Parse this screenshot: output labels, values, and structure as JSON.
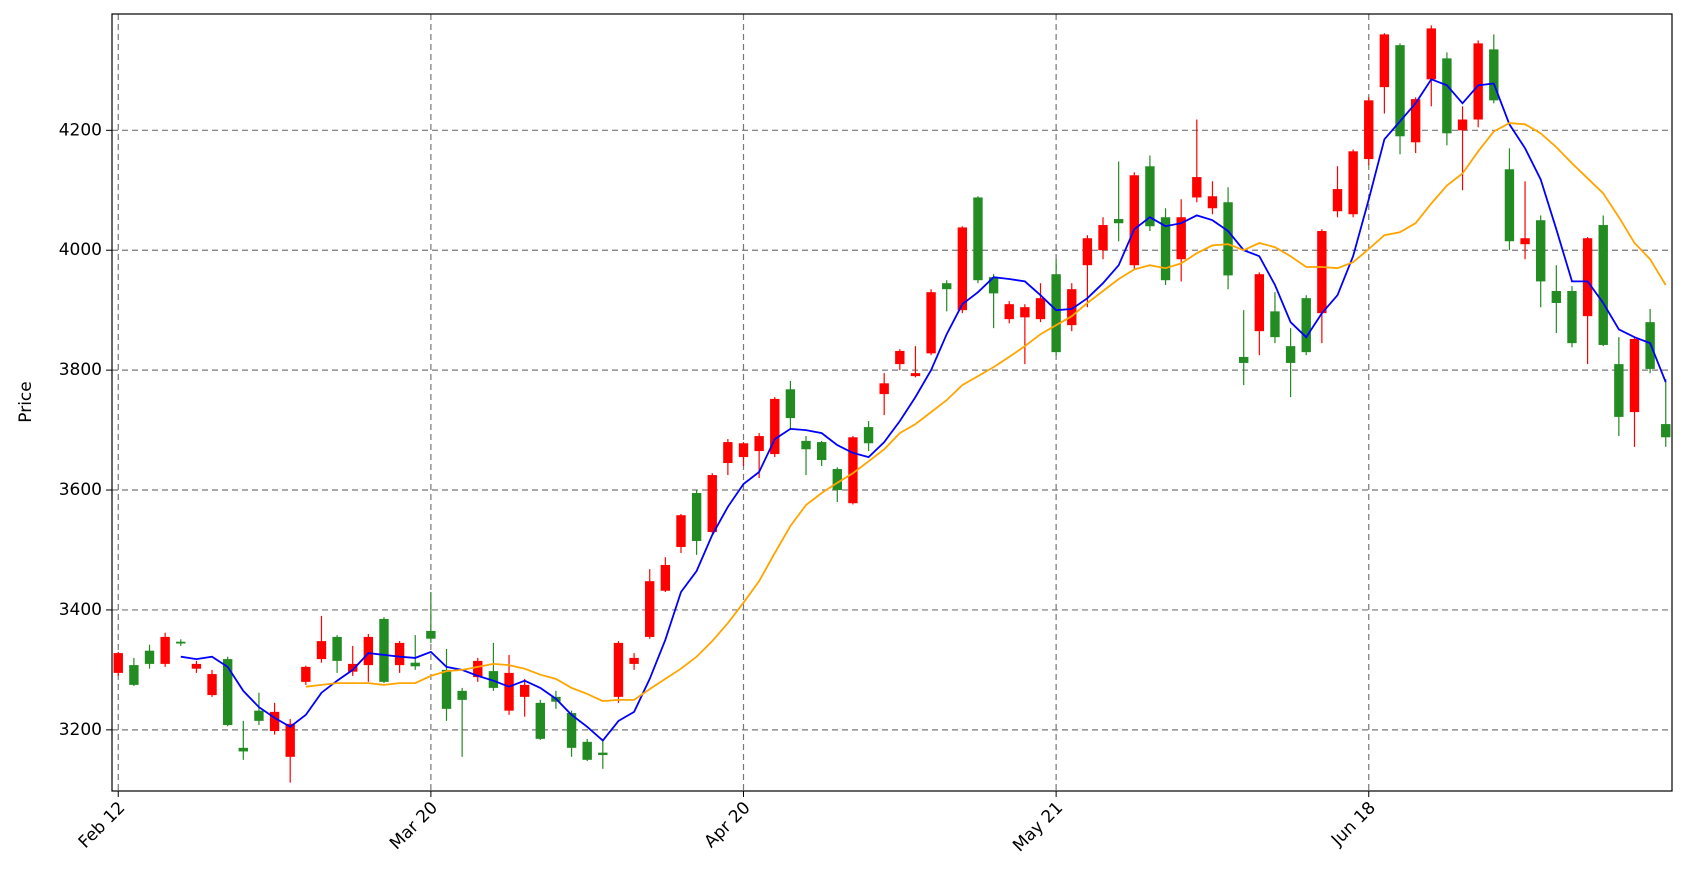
{
  "chart_data": {
    "type": "candlestick",
    "ylabel": "Price",
    "categories": [
      "Feb 12",
      null,
      null,
      null,
      null,
      null,
      null,
      null,
      null,
      null,
      null,
      null,
      null,
      null,
      null,
      null,
      null,
      null,
      null,
      null,
      "Mar 20",
      null,
      null,
      null,
      null,
      null,
      null,
      null,
      null,
      null,
      null,
      null,
      null,
      null,
      null,
      null,
      null,
      null,
      null,
      null,
      "Apr 20",
      null,
      null,
      null,
      null,
      null,
      null,
      null,
      null,
      null,
      null,
      null,
      null,
      null,
      null,
      null,
      null,
      null,
      null,
      null,
      "May 21",
      null,
      null,
      null,
      null,
      null,
      null,
      null,
      null,
      null,
      null,
      null,
      null,
      null,
      null,
      null,
      null,
      null,
      null,
      null,
      "Jun 18",
      null,
      null,
      null,
      null,
      null,
      null,
      null,
      null,
      null,
      null,
      null,
      null,
      null,
      null,
      null,
      null,
      null,
      null,
      null
    ],
    "open": [
      3295,
      3308,
      3332,
      3310,
      3347,
      3302,
      3258,
      3318,
      3170,
      3232,
      3198,
      3155,
      3280,
      3318,
      3355,
      3297,
      3308,
      3385,
      3308,
      3312,
      3365,
      3300,
      3265,
      3288,
      3298,
      3232,
      3255,
      3245,
      3255,
      3228,
      3180,
      3162,
      3255,
      3310,
      3355,
      3432,
      3505,
      3595,
      3530,
      3645,
      3655,
      3665,
      3660,
      3768,
      3682,
      3680,
      3635,
      3578,
      3705,
      3760,
      3810,
      3790,
      3828,
      3945,
      3900,
      4088,
      3955,
      3885,
      3888,
      3885,
      3960,
      3875,
      3975,
      4000,
      4052,
      3975,
      4140,
      4055,
      3985,
      4088,
      4070,
      4080,
      3822,
      3865,
      3898,
      3840,
      3920,
      3895,
      4065,
      4060,
      4152,
      4272,
      4342,
      4180,
      4285,
      4320,
      4200,
      4218,
      4335,
      4135,
      4010,
      4050,
      3932,
      3932,
      3890,
      4042,
      3810,
      3730,
      3880,
      3710
    ],
    "high": [
      3330,
      3320,
      3342,
      3362,
      3351,
      3315,
      3300,
      3322,
      3215,
      3262,
      3245,
      3218,
      3307,
      3390,
      3358,
      3340,
      3360,
      3388,
      3348,
      3358,
      3430,
      3335,
      3270,
      3320,
      3345,
      3325,
      3285,
      3250,
      3265,
      3232,
      3185,
      3185,
      3348,
      3328,
      3468,
      3488,
      3560,
      3600,
      3628,
      3685,
      3680,
      3695,
      3755,
      3782,
      3690,
      3682,
      3638,
      3690,
      3715,
      3795,
      3835,
      3840,
      3935,
      3950,
      4040,
      4090,
      3960,
      3915,
      3910,
      3945,
      3985,
      3945,
      4025,
      4055,
      4148,
      4130,
      4158,
      4070,
      4085,
      4218,
      4115,
      4105,
      3900,
      3963,
      3930,
      3870,
      3925,
      4035,
      4140,
      4168,
      4255,
      4362,
      4345,
      4255,
      4375,
      4330,
      4240,
      4350,
      4360,
      4170,
      4115,
      4058,
      3975,
      3940,
      4022,
      4058,
      3855,
      3855,
      3902,
      3785
    ],
    "low": [
      3290,
      3273,
      3302,
      3305,
      3340,
      3295,
      3255,
      3206,
      3150,
      3208,
      3192,
      3112,
      3275,
      3312,
      3295,
      3290,
      3280,
      3278,
      3295,
      3300,
      3345,
      3215,
      3155,
      3280,
      3265,
      3225,
      3222,
      3183,
      3235,
      3155,
      3148,
      3135,
      3245,
      3300,
      3352,
      3430,
      3495,
      3492,
      3528,
      3625,
      3640,
      3620,
      3655,
      3700,
      3625,
      3640,
      3580,
      3576,
      3665,
      3725,
      3800,
      3788,
      3825,
      3898,
      3895,
      3945,
      3870,
      3878,
      3810,
      3880,
      3825,
      3865,
      3905,
      3985,
      4015,
      3968,
      4032,
      3942,
      3948,
      4080,
      4060,
      3935,
      3775,
      3825,
      3845,
      3755,
      3825,
      3845,
      4055,
      4055,
      4142,
      4228,
      4160,
      4162,
      4240,
      4175,
      4100,
      4205,
      4245,
      4000,
      3985,
      3905,
      3862,
      3838,
      3810,
      3840,
      3690,
      3672,
      3795,
      3672
    ],
    "close": [
      3328,
      3275,
      3310,
      3355,
      3344,
      3310,
      3293,
      3208,
      3164,
      3215,
      3230,
      3210,
      3305,
      3348,
      3315,
      3310,
      3355,
      3280,
      3345,
      3306,
      3352,
      3235,
      3250,
      3315,
      3270,
      3295,
      3275,
      3185,
      3247,
      3170,
      3150,
      3158,
      3345,
      3320,
      3448,
      3475,
      3558,
      3515,
      3625,
      3680,
      3678,
      3690,
      3752,
      3720,
      3668,
      3650,
      3600,
      3688,
      3678,
      3778,
      3832,
      3795,
      3930,
      3935,
      4038,
      3950,
      3928,
      3910,
      3905,
      3920,
      3830,
      3935,
      4020,
      4042,
      4045,
      4125,
      4040,
      3950,
      4055,
      4122,
      4090,
      3958,
      3812,
      3960,
      3855,
      3812,
      3830,
      4032,
      4102,
      4165,
      4250,
      4360,
      4190,
      4252,
      4370,
      4195,
      4218,
      4345,
      4250,
      4015,
      4020,
      3948,
      3912,
      3845,
      4020,
      3842,
      3722,
      3852,
      3802,
      3688
    ],
    "up_color": "#ff0000",
    "down_color": "#228b22",
    "series": [
      {
        "color": "#0000ff",
        "values": [
          null,
          null,
          null,
          null,
          3322,
          3318,
          3322,
          3305,
          3265,
          3238,
          3220,
          3205,
          3225,
          3262,
          3282,
          3300,
          3328,
          3325,
          3322,
          3320,
          3330,
          3305,
          3300,
          3290,
          3282,
          3272,
          3282,
          3270,
          3252,
          3225,
          3205,
          3182,
          3215,
          3230,
          3285,
          3350,
          3430,
          3465,
          3525,
          3572,
          3610,
          3630,
          3685,
          3702,
          3700,
          3695,
          3675,
          3662,
          3655,
          3680,
          3715,
          3755,
          3800,
          3860,
          3910,
          3930,
          3955,
          3952,
          3948,
          3925,
          3900,
          3902,
          3920,
          3945,
          3975,
          4035,
          4055,
          4040,
          4045,
          4058,
          4050,
          4032,
          4000,
          3990,
          3942,
          3880,
          3855,
          3895,
          3925,
          3990,
          4085,
          4185,
          4215,
          4245,
          4285,
          4275,
          4245,
          4275,
          4278,
          4210,
          4170,
          4118,
          4035,
          3948,
          3948,
          3912,
          3868,
          3855,
          3845,
          3780
        ]
      },
      {
        "color": "#ffa500",
        "values": [
          null,
          null,
          null,
          null,
          null,
          null,
          null,
          null,
          null,
          null,
          null,
          null,
          3272,
          3275,
          3278,
          3278,
          3278,
          3275,
          3278,
          3278,
          3290,
          3298,
          3300,
          3305,
          3310,
          3308,
          3302,
          3292,
          3285,
          3270,
          3260,
          3248,
          3250,
          3250,
          3268,
          3285,
          3302,
          3322,
          3348,
          3378,
          3412,
          3448,
          3495,
          3540,
          3575,
          3595,
          3612,
          3628,
          3648,
          3668,
          3695,
          3710,
          3730,
          3750,
          3775,
          3790,
          3805,
          3822,
          3840,
          3860,
          3875,
          3890,
          3912,
          3932,
          3952,
          3968,
          3975,
          3970,
          3978,
          3995,
          4008,
          4010,
          4000,
          4012,
          4005,
          3990,
          3972,
          3972,
          3970,
          3980,
          4002,
          4025,
          4030,
          4045,
          4078,
          4108,
          4128,
          4165,
          4198,
          4212,
          4210,
          4195,
          4172,
          4145,
          4120,
          4095,
          4055,
          4012,
          3985,
          3942
        ]
      }
    ],
    "xlim": [
      -0.4,
      99.4
    ],
    "ylim": [
      3098,
      4394
    ],
    "yticks": [
      3200,
      3400,
      3600,
      3800,
      4000,
      4200
    ],
    "grid": true
  }
}
